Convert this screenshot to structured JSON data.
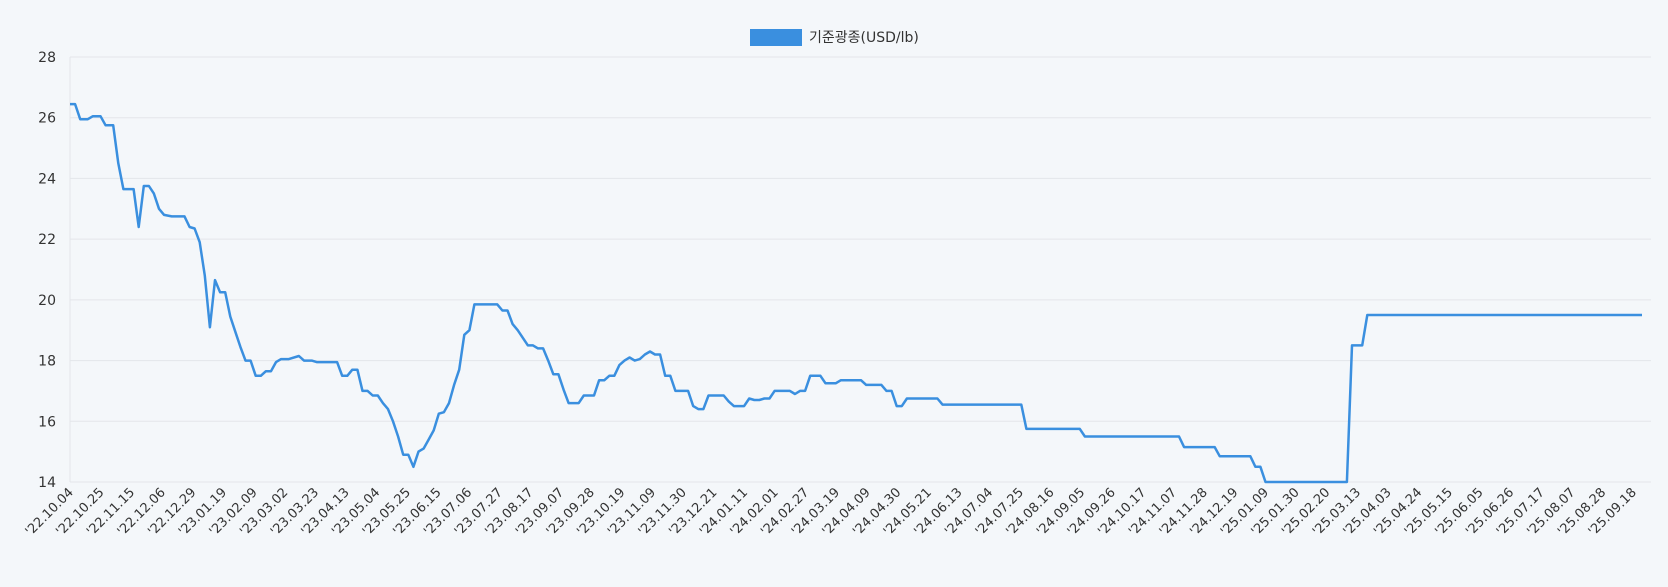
{
  "chart_data": {
    "type": "line",
    "title": "",
    "xlabel": "",
    "ylabel": "",
    "ylim": [
      14,
      28
    ],
    "y_ticks": [
      14,
      16,
      18,
      20,
      22,
      24,
      26,
      28
    ],
    "grid": true,
    "legend_position": "top-center",
    "x_tick_labels": [
      "'22.10.04",
      "'22.10.25",
      "'22.11.15",
      "'22.12.06",
      "'22.12.29",
      "'23.01.19",
      "'23.02.09",
      "'23.03.02",
      "'23.03.23",
      "'23.04.13",
      "'23.05.04",
      "'23.05.25",
      "'23.06.15",
      "'23.07.06",
      "'23.07.27",
      "'23.08.17",
      "'23.09.07",
      "'23.09.28",
      "'23.10.19",
      "'23.11.09",
      "'23.11.30",
      "'23.12.21",
      "'24.01.11",
      "'24.02.01",
      "'24.02.27",
      "'24.03.19",
      "'24.04.09",
      "'24.04.30",
      "'24.05.21",
      "'24.06.13",
      "'24.07.04",
      "'24.07.25",
      "'24.08.16",
      "'24.09.05",
      "'24.09.26",
      "'24.10.17",
      "'24.11.07",
      "'24.11.28",
      "'24.12.19",
      "'25.01.09",
      "'25.01.30",
      "'25.02.20",
      "'25.03.13",
      "'25.04.03",
      "'25.04.24",
      "'25.05.15",
      "'25.06.05",
      "'25.06.26",
      "'25.07.17",
      "'25.08.07",
      "'25.08.28",
      "'25.09.18"
    ],
    "series": [
      {
        "name": "기준광종(USD/lb)",
        "color": "#3a8fdf",
        "points": [
          [
            0,
            26.45
          ],
          [
            0.1,
            26.45
          ],
          [
            0.2,
            25.95
          ],
          [
            0.35,
            25.95
          ],
          [
            0.45,
            26.05
          ],
          [
            0.6,
            26.05
          ],
          [
            0.7,
            25.75
          ],
          [
            0.85,
            25.75
          ],
          [
            0.95,
            24.5
          ],
          [
            1.05,
            23.65
          ],
          [
            1.25,
            23.65
          ],
          [
            1.35,
            22.4
          ],
          [
            1.45,
            23.75
          ],
          [
            1.55,
            23.75
          ],
          [
            1.65,
            23.5
          ],
          [
            1.75,
            23.0
          ],
          [
            1.85,
            22.8
          ],
          [
            2.0,
            22.75
          ],
          [
            2.15,
            22.75
          ],
          [
            2.25,
            22.75
          ],
          [
            2.35,
            22.4
          ],
          [
            2.45,
            22.35
          ],
          [
            2.55,
            21.9
          ],
          [
            2.65,
            20.8
          ],
          [
            2.75,
            19.1
          ],
          [
            2.85,
            20.65
          ],
          [
            2.95,
            20.25
          ],
          [
            3.05,
            20.25
          ],
          [
            3.15,
            19.45
          ],
          [
            3.25,
            18.95
          ],
          [
            3.35,
            18.45
          ],
          [
            3.45,
            18.0
          ],
          [
            3.55,
            18.0
          ],
          [
            3.65,
            17.5
          ],
          [
            3.75,
            17.5
          ],
          [
            3.85,
            17.65
          ],
          [
            3.95,
            17.65
          ],
          [
            4.05,
            17.95
          ],
          [
            4.15,
            18.05
          ],
          [
            4.3,
            18.05
          ],
          [
            4.5,
            18.15
          ],
          [
            4.6,
            18.0
          ],
          [
            4.75,
            18.0
          ],
          [
            4.85,
            17.95
          ],
          [
            5.05,
            17.95
          ],
          [
            5.25,
            17.95
          ],
          [
            5.35,
            17.5
          ],
          [
            5.45,
            17.5
          ],
          [
            5.55,
            17.7
          ],
          [
            5.65,
            17.7
          ],
          [
            5.75,
            17.0
          ],
          [
            5.85,
            17.0
          ],
          [
            5.95,
            16.85
          ],
          [
            6.05,
            16.85
          ],
          [
            6.15,
            16.6
          ],
          [
            6.25,
            16.4
          ],
          [
            6.35,
            16.0
          ],
          [
            6.45,
            15.5
          ],
          [
            6.55,
            14.9
          ],
          [
            6.65,
            14.9
          ],
          [
            6.75,
            14.5
          ],
          [
            6.85,
            15.0
          ],
          [
            6.95,
            15.1
          ],
          [
            7.05,
            15.4
          ],
          [
            7.15,
            15.7
          ],
          [
            7.25,
            16.25
          ],
          [
            7.35,
            16.3
          ],
          [
            7.45,
            16.6
          ],
          [
            7.55,
            17.2
          ],
          [
            7.65,
            17.7
          ],
          [
            7.75,
            18.85
          ],
          [
            7.85,
            19.0
          ],
          [
            7.95,
            19.85
          ],
          [
            8.05,
            19.85
          ],
          [
            8.4,
            19.85
          ],
          [
            8.5,
            19.65
          ],
          [
            8.6,
            19.65
          ],
          [
            8.7,
            19.2
          ],
          [
            8.8,
            19.0
          ],
          [
            8.9,
            18.75
          ],
          [
            9.0,
            18.5
          ],
          [
            9.1,
            18.5
          ],
          [
            9.2,
            18.4
          ],
          [
            9.3,
            18.4
          ],
          [
            9.4,
            18.0
          ],
          [
            9.5,
            17.55
          ],
          [
            9.6,
            17.55
          ],
          [
            9.7,
            17.05
          ],
          [
            9.8,
            16.6
          ],
          [
            10.0,
            16.6
          ],
          [
            10.1,
            16.85
          ],
          [
            10.3,
            16.85
          ],
          [
            10.4,
            17.35
          ],
          [
            10.5,
            17.35
          ],
          [
            10.6,
            17.5
          ],
          [
            10.7,
            17.5
          ],
          [
            10.8,
            17.85
          ],
          [
            10.9,
            18.0
          ],
          [
            11.0,
            18.1
          ],
          [
            11.1,
            18.0
          ],
          [
            11.2,
            18.05
          ],
          [
            11.3,
            18.2
          ],
          [
            11.4,
            18.3
          ],
          [
            11.5,
            18.2
          ],
          [
            11.6,
            18.2
          ],
          [
            11.7,
            17.5
          ],
          [
            11.8,
            17.5
          ],
          [
            11.9,
            17.0
          ],
          [
            12.15,
            17.0
          ],
          [
            12.25,
            16.5
          ],
          [
            12.35,
            16.4
          ],
          [
            12.45,
            16.4
          ],
          [
            12.55,
            16.85
          ],
          [
            12.85,
            16.85
          ],
          [
            12.95,
            16.65
          ],
          [
            13.05,
            16.5
          ],
          [
            13.25,
            16.5
          ],
          [
            13.35,
            16.75
          ],
          [
            13.45,
            16.7
          ],
          [
            13.55,
            16.7
          ],
          [
            13.65,
            16.75
          ],
          [
            13.75,
            16.75
          ],
          [
            13.85,
            17.0
          ],
          [
            14.15,
            17.0
          ],
          [
            14.25,
            16.9
          ],
          [
            14.35,
            17.0
          ],
          [
            14.45,
            17.0
          ],
          [
            14.55,
            17.5
          ],
          [
            14.75,
            17.5
          ],
          [
            14.85,
            17.25
          ],
          [
            15.05,
            17.25
          ],
          [
            15.15,
            17.35
          ],
          [
            15.55,
            17.35
          ],
          [
            15.65,
            17.2
          ],
          [
            15.95,
            17.2
          ],
          [
            16.05,
            17.0
          ],
          [
            16.15,
            17.0
          ],
          [
            16.25,
            16.5
          ],
          [
            16.35,
            16.5
          ],
          [
            16.45,
            16.75
          ],
          [
            17.05,
            16.75
          ],
          [
            17.15,
            16.55
          ],
          [
            18.7,
            16.55
          ],
          [
            18.8,
            15.75
          ],
          [
            19.85,
            15.75
          ],
          [
            19.95,
            15.5
          ],
          [
            21.8,
            15.5
          ],
          [
            21.9,
            15.15
          ],
          [
            22.5,
            15.15
          ],
          [
            22.6,
            14.85
          ],
          [
            23.2,
            14.85
          ],
          [
            23.3,
            14.5
          ],
          [
            23.4,
            14.5
          ],
          [
            23.5,
            14.0
          ],
          [
            25.1,
            14.0
          ],
          [
            25.2,
            18.5
          ],
          [
            25.4,
            18.5
          ],
          [
            25.5,
            19.5
          ],
          [
            30.9,
            19.5
          ]
        ]
      }
    ]
  }
}
